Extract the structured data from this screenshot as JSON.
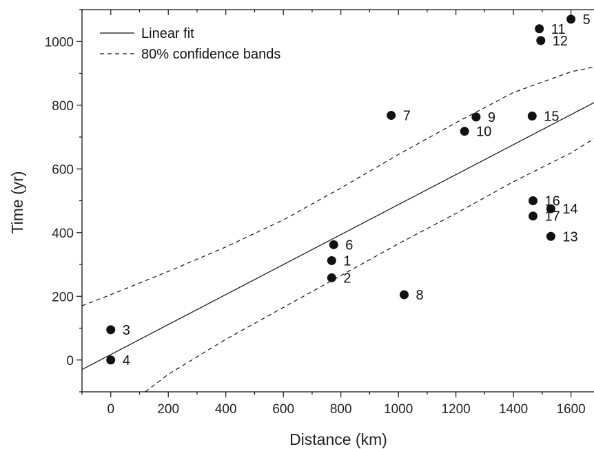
{
  "chart_data": {
    "type": "scatter",
    "xlabel": "Distance (km)",
    "ylabel": "Time (yr)",
    "xlim": [
      -100,
      1680
    ],
    "ylim": [
      -100,
      1100
    ],
    "xticks": [
      0,
      200,
      400,
      600,
      800,
      1000,
      1200,
      1400,
      1600
    ],
    "yticks": [
      0,
      200,
      400,
      600,
      800,
      1000
    ],
    "points": [
      {
        "label": "1",
        "x": 768,
        "y": 312
      },
      {
        "label": "2",
        "x": 768,
        "y": 258
      },
      {
        "label": "3",
        "x": 0,
        "y": 95
      },
      {
        "label": "4",
        "x": 0,
        "y": 0
      },
      {
        "label": "5",
        "x": 1600,
        "y": 1070
      },
      {
        "label": "6",
        "x": 775,
        "y": 362
      },
      {
        "label": "7",
        "x": 975,
        "y": 768
      },
      {
        "label": "8",
        "x": 1020,
        "y": 205
      },
      {
        "label": "9",
        "x": 1270,
        "y": 763
      },
      {
        "label": "10",
        "x": 1230,
        "y": 718
      },
      {
        "label": "11",
        "x": 1490,
        "y": 1040
      },
      {
        "label": "12",
        "x": 1495,
        "y": 1003
      },
      {
        "label": "13",
        "x": 1530,
        "y": 388
      },
      {
        "label": "14",
        "x": 1530,
        "y": 475
      },
      {
        "label": "15",
        "x": 1465,
        "y": 766
      },
      {
        "label": "16",
        "x": 1468,
        "y": 500
      },
      {
        "label": "17",
        "x": 1468,
        "y": 452
      }
    ],
    "fit": {
      "name": "Linear fit",
      "x": [
        -100,
        1680
      ],
      "y": [
        -30,
        808
      ]
    },
    "bands": {
      "name": "80% confidence bands",
      "upper": {
        "x": [
          -100,
          0,
          200,
          400,
          600,
          800,
          1000,
          1200,
          1400,
          1600,
          1680
        ],
        "y": [
          170,
          205,
          278,
          355,
          440,
          540,
          645,
          745,
          840,
          905,
          920
        ]
      },
      "lower": {
        "x": [
          120,
          200,
          400,
          600,
          800,
          1000,
          1200,
          1400,
          1600,
          1680
        ],
        "y": [
          -100,
          -45,
          65,
          165,
          265,
          365,
          460,
          560,
          650,
          695
        ]
      }
    },
    "legend": {
      "position": "top-left",
      "entries": [
        "Linear fit",
        "80% confidence bands"
      ]
    },
    "grid": false
  }
}
